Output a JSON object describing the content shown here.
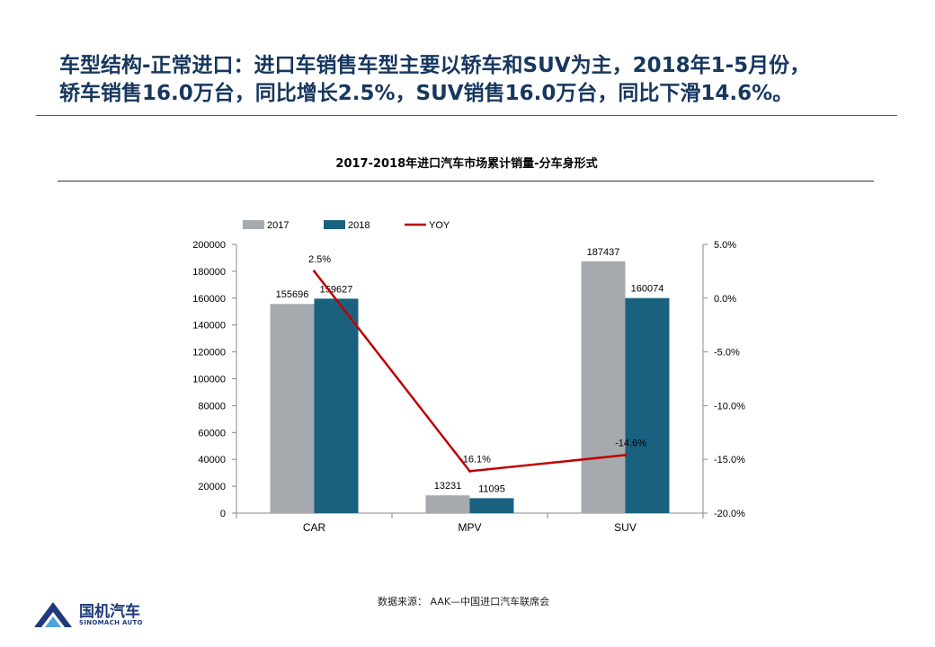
{
  "headline": {
    "line1": "车型结构-正常进口：进口车销售车型主要以轿车和SUV为主，2018年1-5月份，",
    "line2": "轿车销售16.0万台，同比增长2.5%，SUV销售16.0万台，同比下滑14.6%。"
  },
  "chart_data": {
    "type": "bar",
    "title": "2017-2018年进口汽车市场累计销量-分车身形式",
    "categories": [
      "CAR",
      "MPV",
      "SUV"
    ],
    "series": [
      {
        "name": "2017",
        "type": "bar",
        "axis": "left",
        "values": [
          155696,
          13231,
          187437
        ],
        "color": "#a6a9ad"
      },
      {
        "name": "2018",
        "type": "bar",
        "axis": "left",
        "values": [
          159627,
          11095,
          160074
        ],
        "color": "#1a6180"
      },
      {
        "name": "YOY",
        "type": "line",
        "axis": "right",
        "values": [
          2.5,
          -16.1,
          -14.6
        ],
        "labels": [
          "2.5%",
          "-16.1%",
          "-14.6%"
        ],
        "color": "#c00000"
      }
    ],
    "ylim": [
      0,
      200000
    ],
    "yticks": [
      "0",
      "20000",
      "40000",
      "60000",
      "80000",
      "100000",
      "120000",
      "140000",
      "160000",
      "180000",
      "200000"
    ],
    "y2lim": [
      -20,
      5
    ],
    "y2ticks": [
      "-20.0%",
      "-15.0%",
      "-10.0%",
      "-5.0%",
      "0.0%",
      "5.0%"
    ],
    "grid": false,
    "legend": "top-left"
  },
  "source": "数据来源： AAK—中国进口汽车联席会",
  "logo": {
    "cn": "国机汽车",
    "en": "SINOMACH AUTO"
  }
}
